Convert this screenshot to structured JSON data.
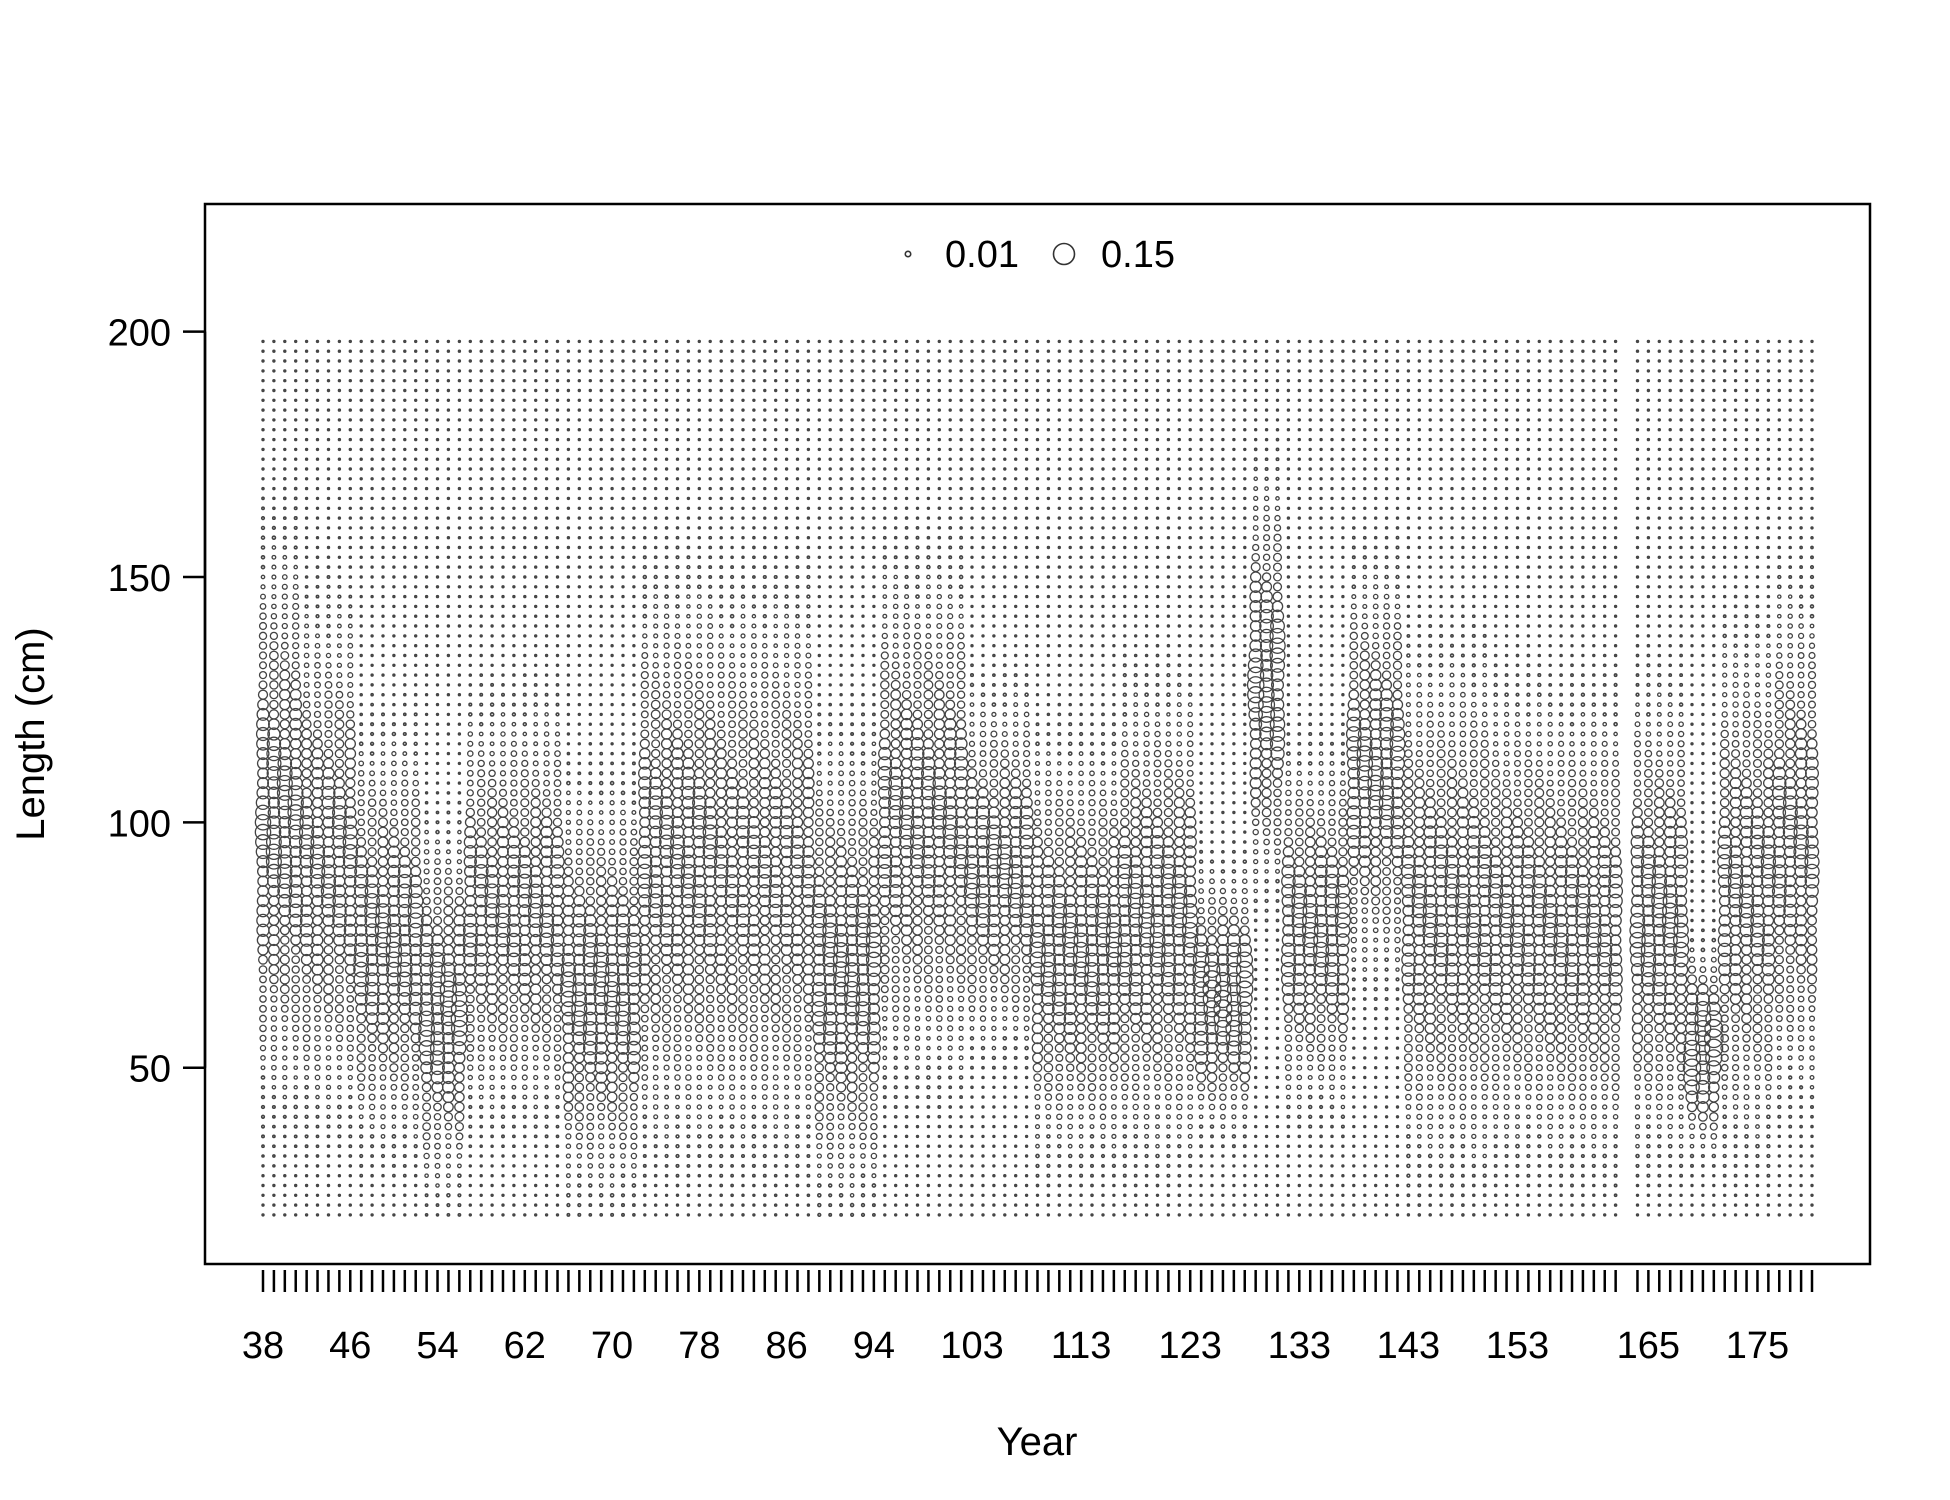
{
  "chart_data": {
    "type": "scatter",
    "subtype": "bubble",
    "title": "",
    "xlabel": "Year",
    "ylabel": "Length (cm)",
    "x_tick_labels": [
      "38",
      "46",
      "54",
      "62",
      "70",
      "78",
      "86",
      "94",
      "103",
      "113",
      "123",
      "133",
      "143",
      "153",
      "165",
      "175"
    ],
    "x_tick_values": [
      38,
      46,
      54,
      62,
      70,
      78,
      86,
      94,
      103,
      113,
      123,
      133,
      143,
      153,
      165,
      175
    ],
    "y_ticks": [
      50,
      100,
      150,
      200
    ],
    "ylim": [
      10,
      226
    ],
    "length_bins": {
      "min": 20,
      "max": 198,
      "step": 2
    },
    "year_groups": [
      [
        38,
        88
      ],
      [
        89,
        102
      ],
      [
        103,
        162
      ],
      [
        164,
        180
      ]
    ],
    "legend": {
      "position": "top-center",
      "entries": [
        {
          "label": "0.01",
          "value": 0.01
        },
        {
          "label": "0.15",
          "value": 0.15
        }
      ]
    },
    "mode_groups": [
      {
        "years": [
          38,
          41
        ],
        "mode": 100,
        "spread": 22,
        "peak": 0.08
      },
      {
        "years": [
          42,
          46
        ],
        "mode": 92,
        "spread": 20,
        "peak": 0.07
      },
      {
        "years": [
          47,
          52
        ],
        "mode": 76,
        "spread": 16,
        "peak": 0.08
      },
      {
        "years": [
          53,
          56
        ],
        "mode": 62,
        "spread": 14,
        "peak": 0.09
      },
      {
        "years": [
          57,
          65
        ],
        "mode": 82,
        "spread": 16,
        "peak": 0.07
      },
      {
        "years": [
          66,
          72
        ],
        "mode": 66,
        "spread": 16,
        "peak": 0.08
      },
      {
        "years": [
          73,
          79
        ],
        "mode": 92,
        "spread": 22,
        "peak": 0.07
      },
      {
        "years": [
          80,
          88
        ],
        "mode": 90,
        "spread": 22,
        "peak": 0.06
      },
      {
        "years": [
          89,
          94
        ],
        "mode": 70,
        "spread": 18,
        "peak": 0.08
      },
      {
        "years": [
          95,
          102
        ],
        "mode": 100,
        "spread": 20,
        "peak": 0.07
      },
      {
        "years": [
          103,
          108
        ],
        "mode": 90,
        "spread": 14,
        "peak": 0.08
      },
      {
        "years": [
          109,
          116
        ],
        "mode": 74,
        "spread": 16,
        "peak": 0.08
      },
      {
        "years": [
          117,
          123
        ],
        "mode": 80,
        "spread": 18,
        "peak": 0.08
      },
      {
        "years": [
          124,
          128
        ],
        "mode": 64,
        "spread": 10,
        "peak": 0.11
      },
      {
        "years": [
          129,
          131
        ],
        "mode": 128,
        "spread": 16,
        "peak": 0.09
      },
      {
        "years": [
          132,
          137
        ],
        "mode": 78,
        "spread": 14,
        "peak": 0.08
      },
      {
        "years": [
          138,
          142
        ],
        "mode": 110,
        "spread": 16,
        "peak": 0.08
      },
      {
        "years": [
          143,
          150
        ],
        "mode": 82,
        "spread": 20,
        "peak": 0.07
      },
      {
        "years": [
          151,
          155
        ],
        "mode": 80,
        "spread": 18,
        "peak": 0.07
      },
      {
        "years": [
          156,
          162
        ],
        "mode": 78,
        "spread": 18,
        "peak": 0.07
      },
      {
        "years": [
          164,
          168
        ],
        "mode": 80,
        "spread": 18,
        "peak": 0.08
      },
      {
        "years": [
          169,
          171
        ],
        "mode": 54,
        "spread": 8,
        "peak": 0.12
      },
      {
        "years": [
          172,
          176
        ],
        "mode": 86,
        "spread": 20,
        "peak": 0.07
      },
      {
        "years": [
          177,
          180
        ],
        "mode": 96,
        "spread": 20,
        "peak": 0.07
      }
    ]
  }
}
